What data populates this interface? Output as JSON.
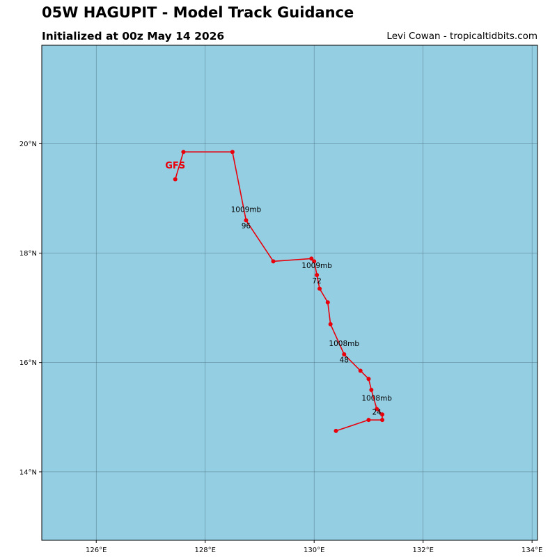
{
  "header": {
    "title": "05W HAGUPIT - Model Track Guidance",
    "subtitle": "Initialized at 00z May 14 2026",
    "credit": "Levi Cowan - tropicaltidbits.com"
  },
  "colors": {
    "ocean": "#94cee3",
    "track": "#e8000b",
    "grid": "#4a6e7c"
  },
  "chart_data": {
    "type": "line",
    "title": "05W HAGUPIT - Model Track Guidance",
    "subtitle": "Initialized at 00z May 14 2026",
    "xlim": [
      125,
      134.1
    ],
    "ylim": [
      12.75,
      21.8
    ],
    "x_ticks": [
      {
        "value": 126,
        "label": "126°E"
      },
      {
        "value": 128,
        "label": "128°E"
      },
      {
        "value": 130,
        "label": "130°E"
      },
      {
        "value": 132,
        "label": "132°E"
      },
      {
        "value": 134,
        "label": "134°E"
      }
    ],
    "y_ticks": [
      {
        "value": 14,
        "label": "14°N"
      },
      {
        "value": 16,
        "label": "16°N"
      },
      {
        "value": 18,
        "label": "18°N"
      },
      {
        "value": 20,
        "label": "20°N"
      }
    ],
    "grid": true,
    "series": [
      {
        "name": "GFS",
        "color": "#e8000b",
        "points": [
          {
            "lon": 130.4,
            "lat": 14.75
          },
          {
            "lon": 131.0,
            "lat": 14.95
          },
          {
            "lon": 131.25,
            "lat": 14.95
          },
          {
            "lon": 131.25,
            "lat": 15.05
          },
          {
            "lon": 131.15,
            "lat": 15.15
          },
          {
            "lon": 131.05,
            "lat": 15.5
          },
          {
            "lon": 131.0,
            "lat": 15.7
          },
          {
            "lon": 130.85,
            "lat": 15.85
          },
          {
            "lon": 130.55,
            "lat": 16.15
          },
          {
            "lon": 130.3,
            "lat": 16.7
          },
          {
            "lon": 130.25,
            "lat": 17.1
          },
          {
            "lon": 130.1,
            "lat": 17.35
          },
          {
            "lon": 130.05,
            "lat": 17.6
          },
          {
            "lon": 130.0,
            "lat": 17.85
          },
          {
            "lon": 129.95,
            "lat": 17.9
          },
          {
            "lon": 129.25,
            "lat": 17.85
          },
          {
            "lon": 128.75,
            "lat": 18.6
          },
          {
            "lon": 128.5,
            "lat": 19.85
          },
          {
            "lon": 127.6,
            "lat": 19.85
          },
          {
            "lon": 127.45,
            "lat": 19.35
          }
        ]
      }
    ],
    "hour_labels": [
      {
        "text": "24",
        "lon": 131.15,
        "lat": 15.05
      },
      {
        "text": "48",
        "lon": 130.55,
        "lat": 16.0
      },
      {
        "text": "72",
        "lon": 130.05,
        "lat": 17.45
      },
      {
        "text": "96",
        "lon": 128.75,
        "lat": 18.45
      }
    ],
    "pressure_labels": [
      {
        "text": "1008mb",
        "lon": 131.15,
        "lat": 15.3
      },
      {
        "text": "1008mb",
        "lon": 130.55,
        "lat": 16.3
      },
      {
        "text": "1009mb",
        "lon": 130.05,
        "lat": 17.73
      },
      {
        "text": "1009mb",
        "lon": 128.75,
        "lat": 18.75
      }
    ],
    "model_label": {
      "text": "GFS",
      "lon": 127.45,
      "lat": 19.55
    }
  }
}
